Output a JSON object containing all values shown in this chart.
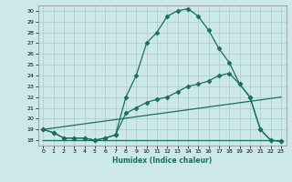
{
  "xlabel": "Humidex (Indice chaleur)",
  "xlim": [
    -0.5,
    23.5
  ],
  "ylim": [
    17.5,
    30.5
  ],
  "yticks": [
    18,
    19,
    20,
    21,
    22,
    23,
    24,
    25,
    26,
    27,
    28,
    29,
    30
  ],
  "xticks": [
    0,
    1,
    2,
    3,
    4,
    5,
    6,
    7,
    8,
    9,
    10,
    11,
    12,
    13,
    14,
    15,
    16,
    17,
    18,
    19,
    20,
    21,
    22,
    23
  ],
  "background_color": "#cce8e8",
  "grid_color": "#b0d4d4",
  "line_color": "#1a6e5e",
  "lines": [
    {
      "x": [
        0,
        1,
        2,
        3,
        4,
        5,
        6,
        7,
        8,
        9,
        10,
        11,
        12,
        13,
        14,
        15,
        16,
        17,
        18,
        19,
        20,
        21,
        22,
        23
      ],
      "y": [
        19,
        18.7,
        18.2,
        18.2,
        18.2,
        18.0,
        18.2,
        18.5,
        22.0,
        24.0,
        27.0,
        28.0,
        29.5,
        30.0,
        30.2,
        29.5,
        28.2,
        26.5,
        25.2,
        23.2,
        22.0,
        19.0,
        18.0,
        17.9
      ],
      "marker": "D",
      "markersize": 2.5,
      "linewidth": 0.9
    },
    {
      "x": [
        0,
        1,
        2,
        3,
        4,
        5,
        6,
        7,
        8,
        9,
        10,
        11,
        12,
        13,
        14,
        15,
        16,
        17,
        18,
        19,
        20,
        21,
        22,
        23
      ],
      "y": [
        19,
        18.7,
        18.2,
        18.2,
        18.2,
        18.0,
        18.2,
        18.5,
        20.5,
        21.0,
        21.5,
        21.8,
        22.0,
        22.5,
        23.0,
        23.2,
        23.5,
        24.0,
        24.2,
        23.2,
        22.0,
        19.0,
        18.0,
        17.9
      ],
      "marker": "D",
      "markersize": 2.5,
      "linewidth": 0.9
    },
    {
      "x": [
        0,
        23
      ],
      "y": [
        19,
        22.0
      ],
      "marker": null,
      "markersize": 0,
      "linewidth": 0.9
    },
    {
      "x": [
        0,
        23
      ],
      "y": [
        18.0,
        18.0
      ],
      "marker": null,
      "markersize": 0,
      "linewidth": 0.9
    }
  ]
}
